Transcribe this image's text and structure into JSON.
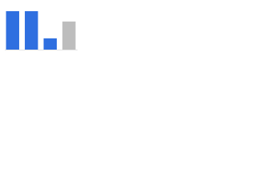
{
  "chart_data": {
    "type": "bar",
    "categories": [
      null,
      null,
      null,
      null
    ],
    "values": [
      89,
      89,
      26,
      65
    ],
    "colors": [
      "#2f6fe0",
      "#2f6fe0",
      "#2f6fe0",
      "#bdbdbd"
    ],
    "ylim": [
      0,
      100
    ]
  }
}
